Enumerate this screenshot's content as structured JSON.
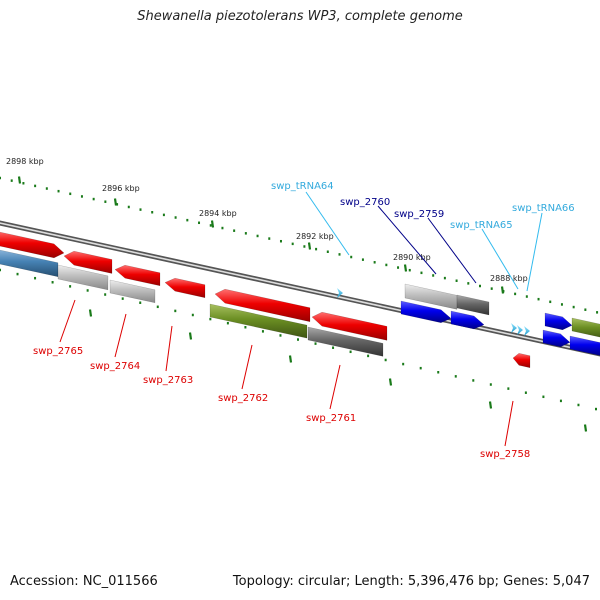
{
  "title": "Shewanella piezotolerans WP3, complete genome",
  "accession_text": "Accession: NC_011566",
  "summary_text": "Topology: circular; Length: 5,396,476 bp; Genes: 5,047",
  "colors": {
    "backbone": "#888888",
    "tick": "#1a7a1a",
    "red": "#ee0000",
    "gray": "#b8b8b8",
    "dark_gray": "#666666",
    "olive": "#6b8e23",
    "steel_blue": "#4682b4",
    "blue": "#0000ee",
    "cyan": "#33bbee",
    "label_red": "#dd0000",
    "label_cyan": "#33aadd",
    "label_navy": "#000088"
  },
  "ticks": [
    {
      "label": "2898 kbp"
    },
    {
      "label": "2896 kbp"
    },
    {
      "label": "2894 kbp"
    },
    {
      "label": "2892 kbp"
    },
    {
      "label": "2890 kbp"
    },
    {
      "label": "2888 kbp"
    }
  ],
  "gene_labels": [
    {
      "id": "swp_2765",
      "label": "swp_2765",
      "color": "red"
    },
    {
      "id": "swp_2764",
      "label": "swp_2764",
      "color": "red"
    },
    {
      "id": "swp_2763",
      "label": "swp_2763",
      "color": "red"
    },
    {
      "id": "swp_2762",
      "label": "swp_2762",
      "color": "red"
    },
    {
      "id": "swp_2761",
      "label": "swp_2761",
      "color": "red"
    },
    {
      "id": "swp_2758",
      "label": "swp_2758",
      "color": "red"
    },
    {
      "id": "swp_tRNA64",
      "label": "swp_tRNA64",
      "color": "cyan"
    },
    {
      "id": "swp_2760",
      "label": "swp_2760",
      "color": "navy"
    },
    {
      "id": "swp_2759",
      "label": "swp_2759",
      "color": "navy"
    },
    {
      "id": "swp_tRNA65",
      "label": "swp_tRNA65",
      "color": "cyan"
    },
    {
      "id": "swp_tRNA66",
      "label": "swp_tRNA66",
      "color": "cyan"
    }
  ]
}
